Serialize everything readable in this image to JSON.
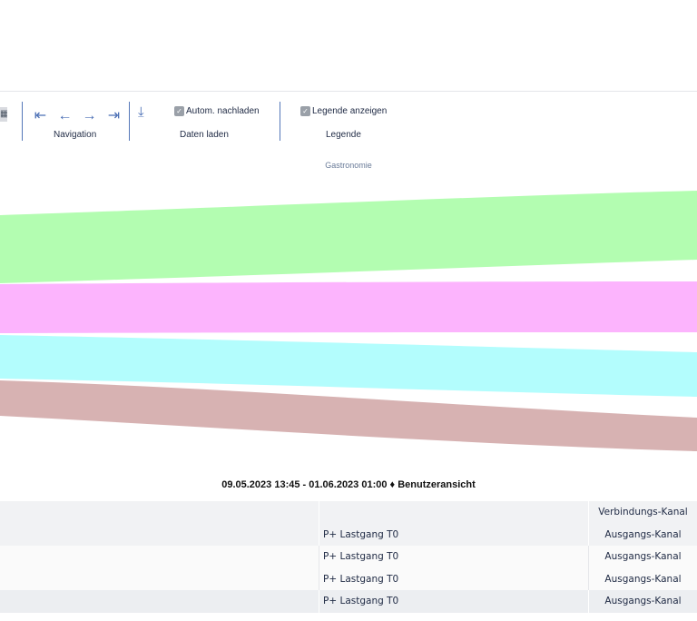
{
  "toolbar": {
    "navigation": {
      "label": "Navigation",
      "icons": [
        "first-icon",
        "prev-icon",
        "next-icon",
        "last-icon"
      ]
    },
    "load_data": {
      "label": "Daten laden",
      "auto_reload_label": "Autom. nachladen",
      "auto_reload_checked": true
    },
    "legend": {
      "label": "Legende",
      "show_legend_label": "Legende anzeigen",
      "show_legend_checked": true
    }
  },
  "sankey": {
    "node_label": "Gastronomie",
    "flow_colors": [
      "#b3fdb1",
      "#fcb4fd",
      "#b3fdfd",
      "#d7b2b2"
    ]
  },
  "footer": {
    "date_range": "09.05.2023 13:45 - 01.06.2023 01:00 ♦ Benutzeransicht"
  },
  "table": {
    "header": {
      "col2": "",
      "col3": "Verbindungs-Kanal"
    },
    "rows": [
      {
        "name": "P+ Lastgang T0",
        "channel": "Ausgangs-Kanal"
      },
      {
        "name": "P+ Lastgang T0",
        "channel": "Ausgangs-Kanal"
      },
      {
        "name": "P+ Lastgang T0",
        "channel": "Ausgangs-Kanal"
      },
      {
        "name": "P+ Lastgang T0",
        "channel": "Ausgangs-Kanal"
      }
    ]
  }
}
